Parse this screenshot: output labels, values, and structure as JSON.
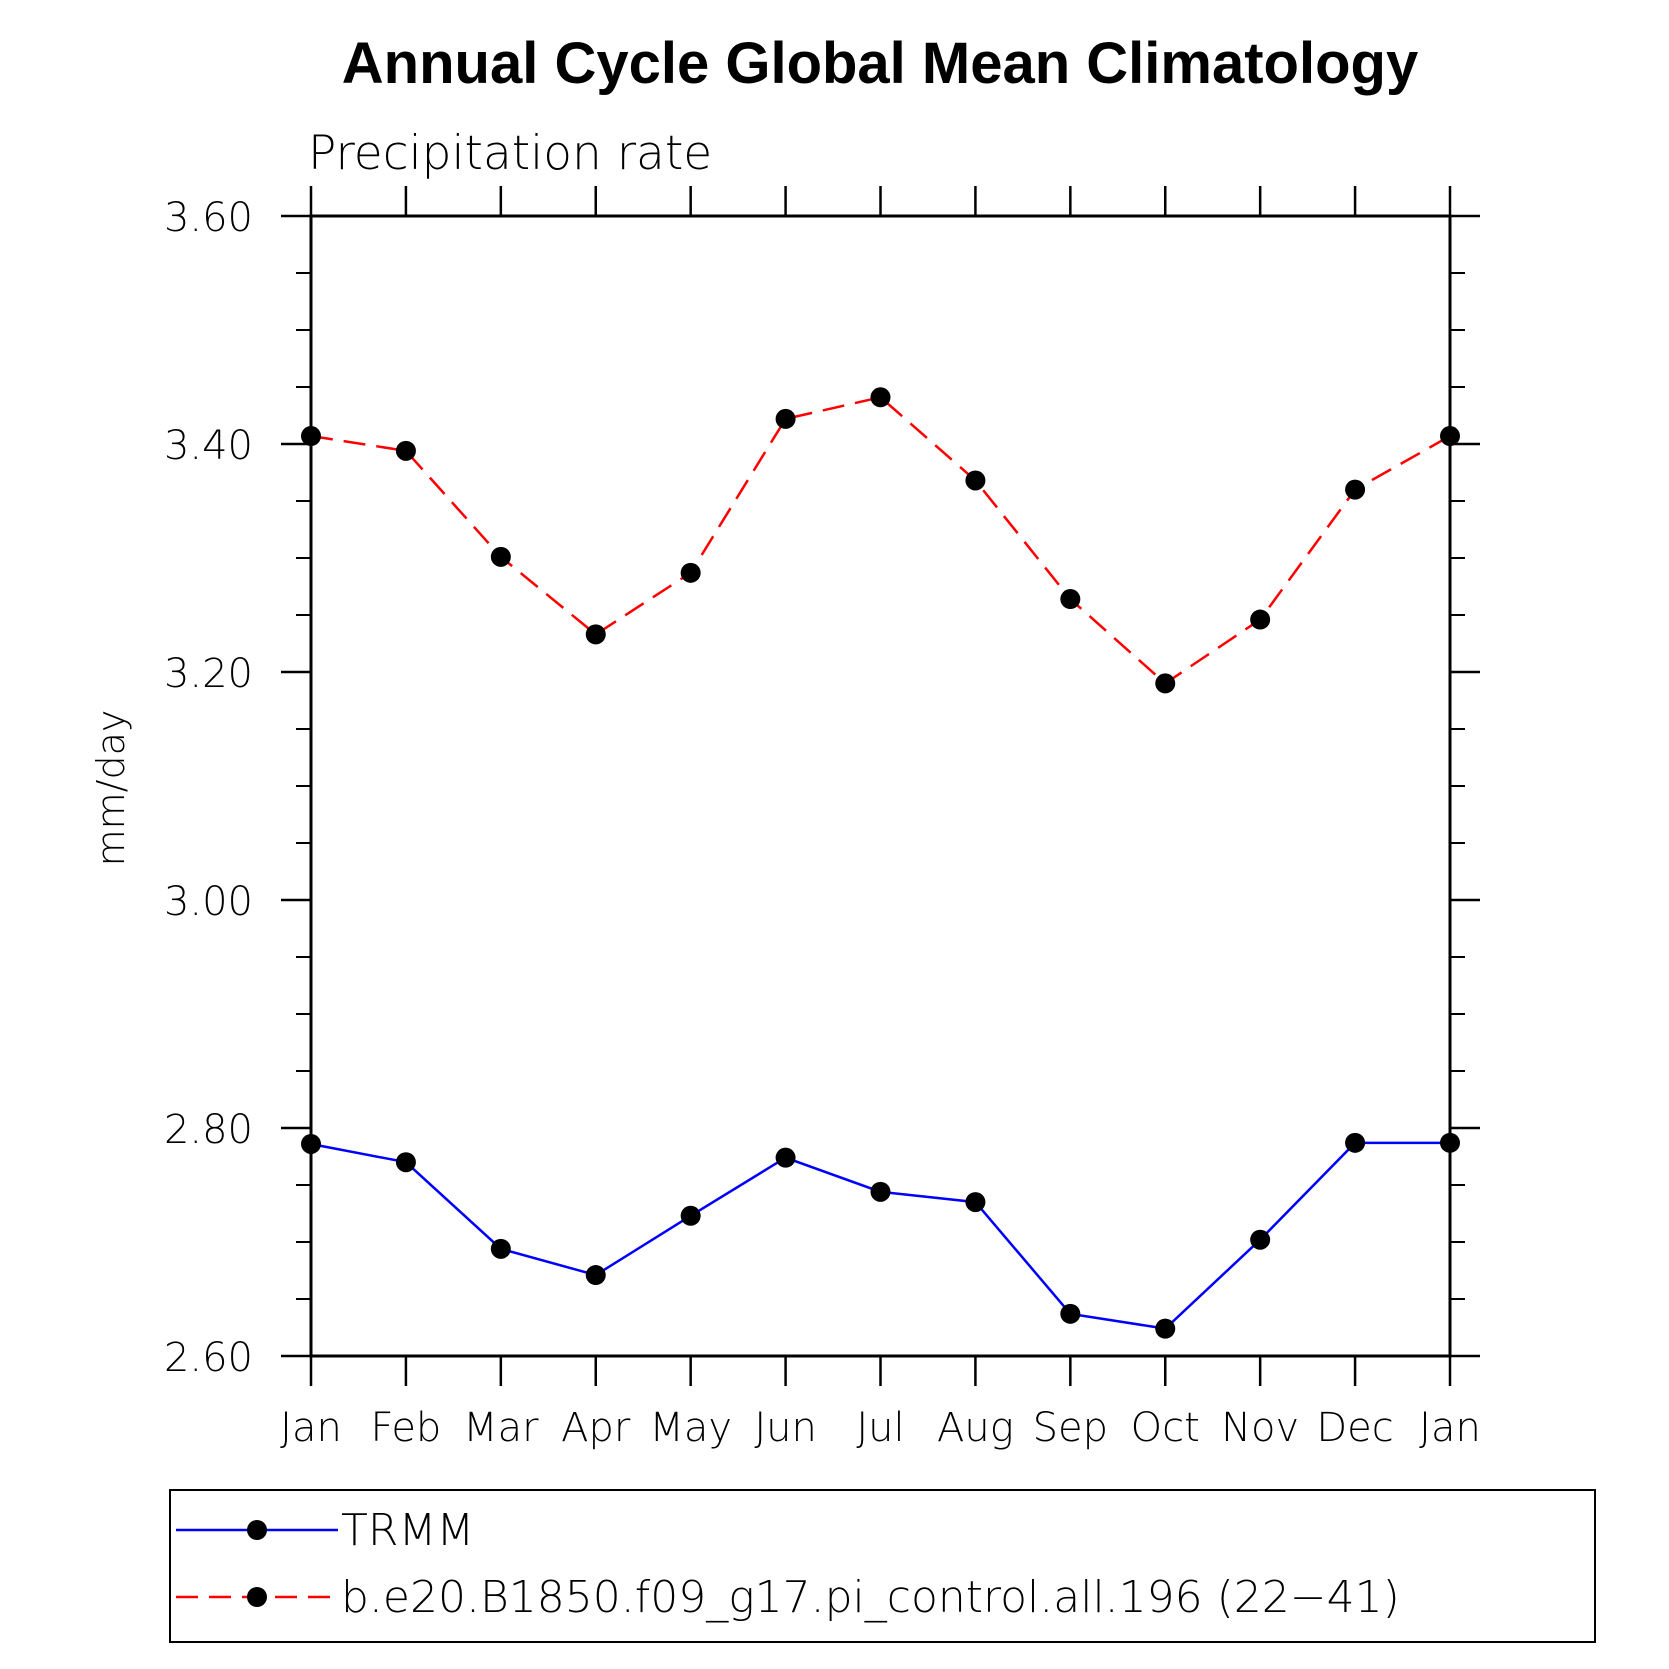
{
  "chart_data": {
    "type": "line",
    "title": "Annual Cycle Global Mean Climatology",
    "subtitle": "Precipitation rate",
    "xlabel": "",
    "ylabel": "mm/day",
    "categories": [
      "Jan",
      "Feb",
      "Mar",
      "Apr",
      "May",
      "Jun",
      "Jul",
      "Aug",
      "Sep",
      "Oct",
      "Nov",
      "Dec",
      "Jan"
    ],
    "ylim": [
      2.6,
      3.6
    ],
    "yticks": [
      2.6,
      2.8,
      3.0,
      3.2,
      3.4,
      3.6
    ],
    "ytick_labels": [
      "2.60",
      "2.80",
      "3.00",
      "3.20",
      "3.40",
      "3.60"
    ],
    "grid": false,
    "legend_position": "bottom",
    "series": [
      {
        "name": "TRMM",
        "color": "#0000ff",
        "style": "solid",
        "marker": "filled-circle",
        "values": [
          2.786,
          2.77,
          2.694,
          2.671,
          2.723,
          2.774,
          2.744,
          2.735,
          2.637,
          2.624,
          2.702,
          2.787,
          2.787
        ]
      },
      {
        "name": "b.e20.B1850.f09_g17.pi_control.all.196 (22−41)",
        "color": "#ff0000",
        "style": "dashed",
        "marker": "filled-circle",
        "values": [
          3.407,
          3.394,
          3.301,
          3.233,
          3.287,
          3.422,
          3.441,
          3.368,
          3.264,
          3.19,
          3.246,
          3.36,
          3.407
        ]
      }
    ]
  }
}
